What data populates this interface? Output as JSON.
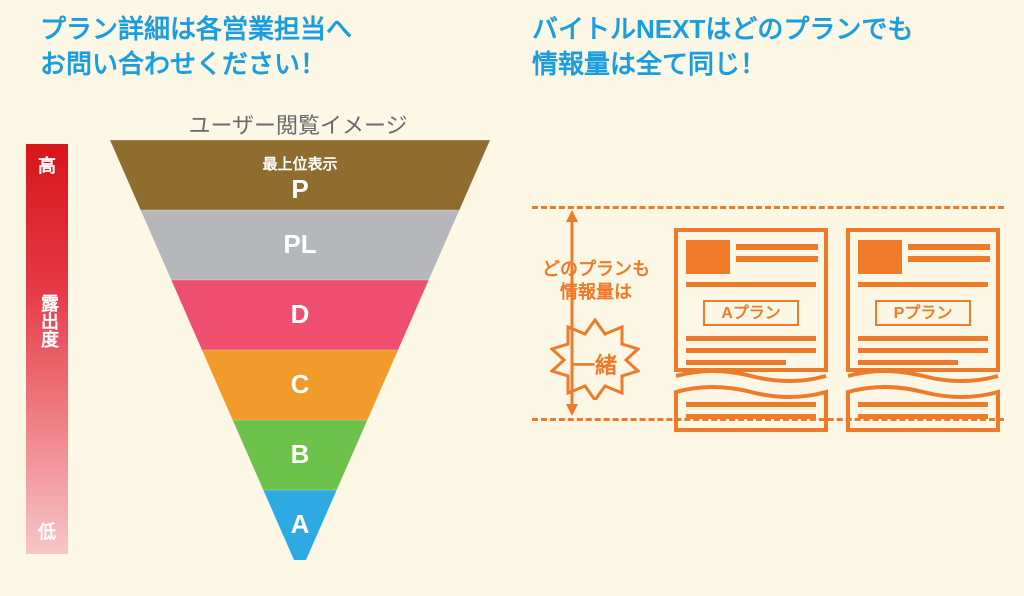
{
  "headings": {
    "left": "プラン詳細は各営業担当へ\nお問い合わせください！",
    "right": "バイトルNEXTはどのプランでも\n情報量は全て同じ！"
  },
  "exposure": {
    "high": "高",
    "low": "低",
    "axis": "露出度",
    "gradient_top": "#d6161a",
    "gradient_bottom": "#f7c6c6"
  },
  "funnel": {
    "title": "ユーザー閲覧イメージ",
    "top_sublabel": "最上位表示",
    "tiers": [
      {
        "label": "P",
        "fill": "#8e6d2e",
        "stroke": "#6f5522"
      },
      {
        "label": "PL",
        "fill": "#b5b7bb",
        "stroke": "#9a9ca0"
      },
      {
        "label": "D",
        "fill": "#ee4f6e",
        "stroke": "#d33a58"
      },
      {
        "label": "C",
        "fill": "#f19b2d",
        "stroke": "#d7821a"
      },
      {
        "label": "B",
        "fill": "#6cc24a",
        "stroke": "#55a736"
      },
      {
        "label": "A",
        "fill": "#2daae1",
        "stroke": "#1d8fc2"
      }
    ]
  },
  "info": {
    "caption": "どのプランも\n情報量は",
    "burst": "一緒",
    "accent_color": "#ee7a2a",
    "docs": [
      {
        "label": "Aプラン"
      },
      {
        "label": "Pプラン"
      }
    ]
  },
  "background_color": "#fdf8e6"
}
